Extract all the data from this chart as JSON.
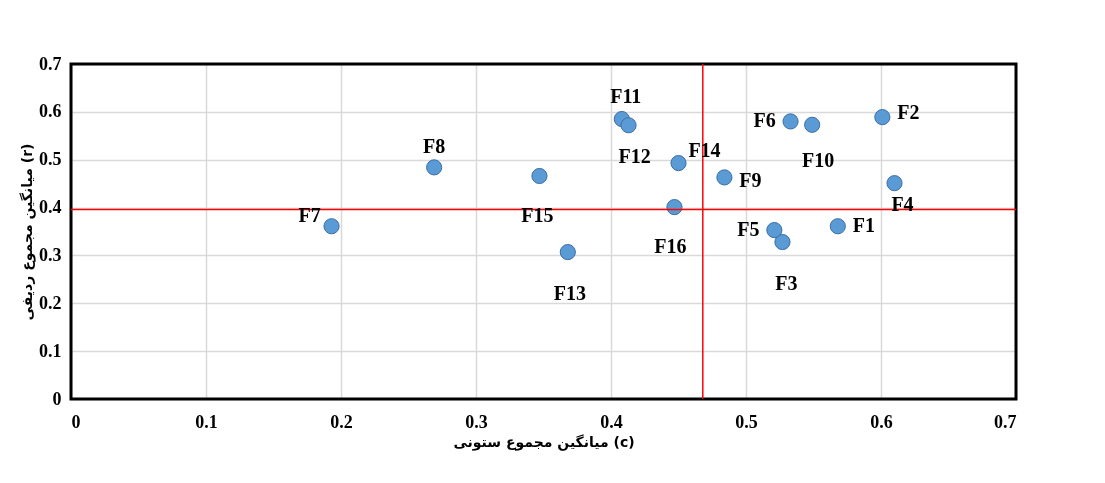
{
  "chart_data": {
    "type": "scatter",
    "xlabel": "میانگین مجموع ستونی (c)",
    "ylabel": "میانگین مجموع ردیفی (r)",
    "x": [
      0.568,
      0.601,
      0.527,
      0.61,
      0.521,
      0.533,
      0.193,
      0.269,
      0.484,
      0.549,
      0.408,
      0.413,
      0.368,
      0.45,
      0.347,
      0.447
    ],
    "series": [
      {
        "color": "#5b9bd5",
        "values": [
          0.361,
          0.589,
          0.328,
          0.451,
          0.353,
          0.58,
          0.361,
          0.484,
          0.463,
          0.573,
          0.585,
          0.572,
          0.307,
          0.493,
          0.466,
          0.401
        ]
      }
    ],
    "annotations": [
      {
        "text": "F1",
        "x": 0.568,
        "y": 0.361
      },
      {
        "text": "F2",
        "x": 0.601,
        "y": 0.589
      },
      {
        "text": "F3",
        "x": 0.527,
        "y": 0.328
      },
      {
        "text": "F4",
        "x": 0.61,
        "y": 0.451
      },
      {
        "text": "F5",
        "x": 0.521,
        "y": 0.353
      },
      {
        "text": "F6",
        "x": 0.533,
        "y": 0.58
      },
      {
        "text": "F7",
        "x": 0.193,
        "y": 0.361
      },
      {
        "text": "F8",
        "x": 0.269,
        "y": 0.484
      },
      {
        "text": "F9",
        "x": 0.484,
        "y": 0.463
      },
      {
        "text": "F10",
        "x": 0.549,
        "y": 0.573
      },
      {
        "text": "F11",
        "x": 0.408,
        "y": 0.585
      },
      {
        "text": "F12",
        "x": 0.413,
        "y": 0.572
      },
      {
        "text": "F13",
        "x": 0.368,
        "y": 0.307
      },
      {
        "text": "F14",
        "x": 0.45,
        "y": 0.493
      },
      {
        "text": "F15",
        "x": 0.347,
        "y": 0.466
      },
      {
        "text": "F16",
        "x": 0.447,
        "y": 0.401
      }
    ],
    "ref_lines": [
      {
        "axis": "x",
        "value": 0.468,
        "color": "#ff0000"
      },
      {
        "axis": "y",
        "value": 0.396,
        "color": "#ff0000"
      }
    ],
    "xlim": [
      0,
      0.7
    ],
    "xticks": [
      0,
      0.1,
      0.2,
      0.3,
      0.4,
      0.5,
      0.6,
      0.7
    ],
    "ylim": [
      0,
      0.7
    ],
    "yticks": [
      0,
      0.1,
      0.2,
      0.3,
      0.4,
      0.5,
      0.6,
      0.7
    ],
    "grid": true,
    "marker": "circle"
  }
}
